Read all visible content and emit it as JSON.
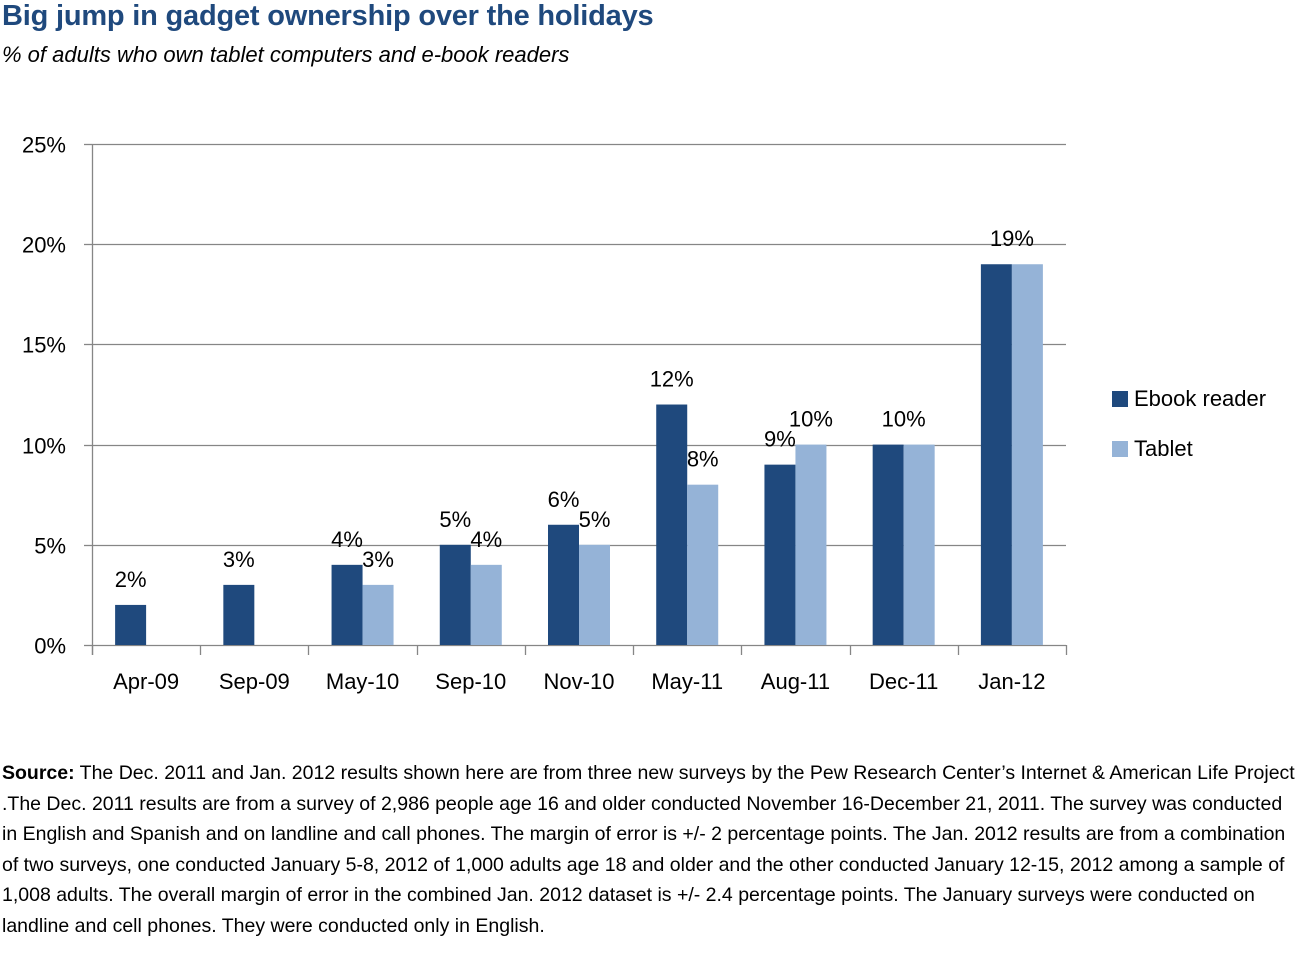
{
  "chart_data": {
    "type": "bar",
    "title": "Big jump in gadget ownership over the holidays",
    "subtitle": "% of adults who own tablet computers and e-book readers",
    "xlabel": "",
    "ylabel": "",
    "categories": [
      "Apr-09",
      "Sep-09",
      "May-10",
      "Sep-10",
      "Nov-10",
      "May-11",
      "Aug-11",
      "Dec-11",
      "Jan-12"
    ],
    "series": [
      {
        "name": "Ebook reader",
        "color": "#1f497d",
        "values": [
          2,
          3,
          4,
          5,
          6,
          12,
          9,
          10,
          19
        ],
        "labels": [
          "2%",
          "3%",
          "4%",
          "5%",
          "6%",
          "12%",
          "9%",
          "10%",
          "19%"
        ]
      },
      {
        "name": "Tablet",
        "color": "#95b3d7",
        "values": [
          null,
          null,
          3,
          4,
          5,
          8,
          10,
          10,
          19
        ],
        "labels": [
          null,
          null,
          "3%",
          "4%",
          "5%",
          "8%",
          "10%",
          null,
          null
        ]
      }
    ],
    "ylim": [
      0,
      25
    ],
    "yticks": [
      0,
      5,
      10,
      15,
      20,
      25
    ],
    "ytick_labels": [
      "0%",
      "5%",
      "10%",
      "15%",
      "20%",
      "25%"
    ],
    "grid": true,
    "legend_position": "right"
  },
  "source": {
    "label": "Source:",
    "text": " The Dec. 2011 and Jan. 2012 results shown here are from three new surveys by the Pew Research Center’s Internet & American Life Project .The Dec. 2011 results are from a survey of 2,986 people age 16 and older conducted November 16-December 21, 2011. The survey was conducted in English and Spanish and on landline and call phones. The margin of error is +/- 2 percentage points. The Jan. 2012 results are from a combination of two surveys, one conducted January 5-8, 2012 of 1,000 adults age 18 and older and the other conducted January 12-15, 2012 among a sample of 1,008 adults. The overall margin of error in the combined Jan. 2012 dataset is +/- 2.4 percentage points. The January surveys were conducted on landline and cell phones. They were conducted only in English."
  }
}
